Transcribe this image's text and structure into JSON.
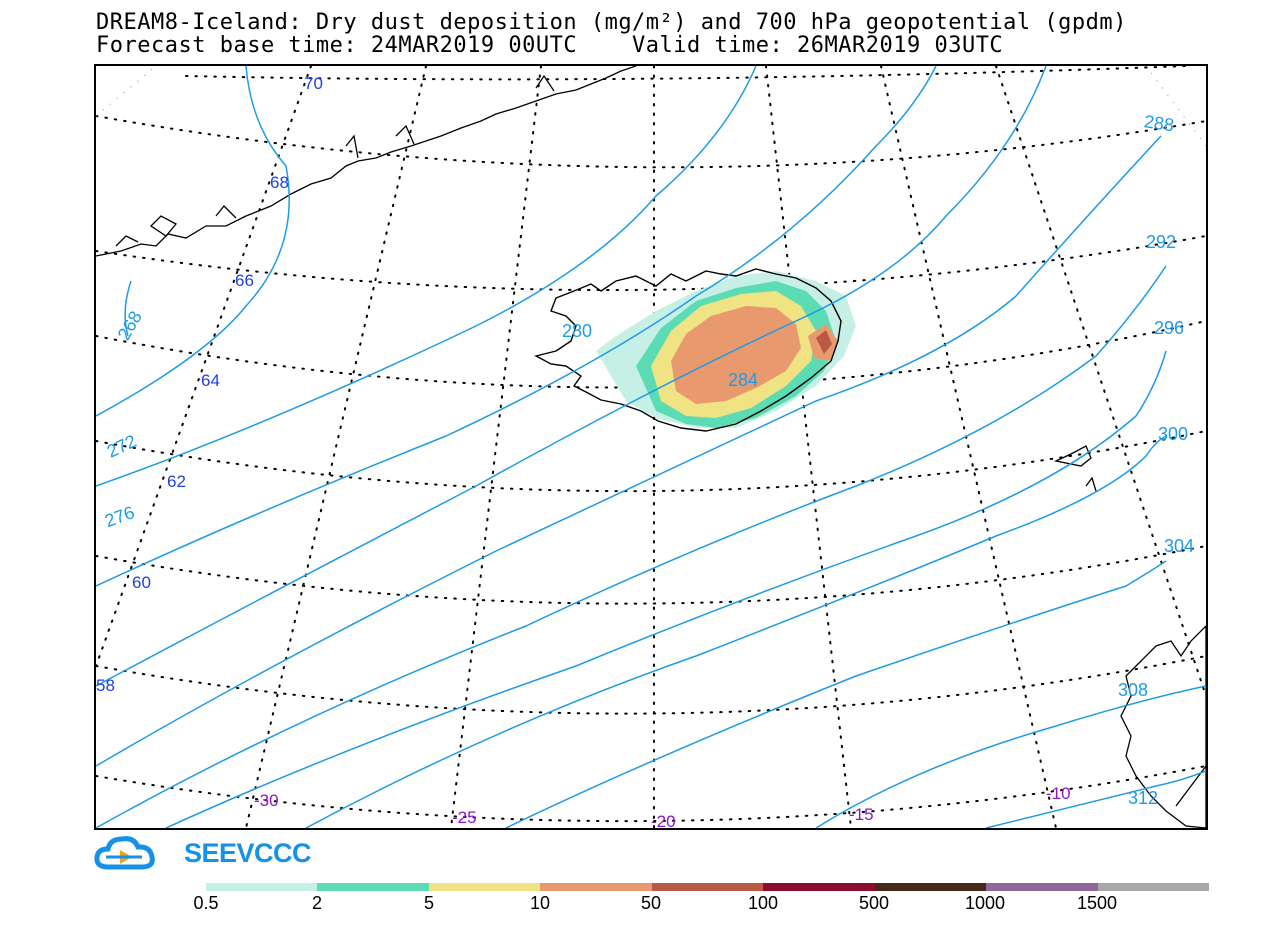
{
  "title": {
    "line1": "DREAM8-Iceland: Dry dust deposition (mg/m²) and 700 hPa geopotential (gpdm)",
    "line2": "Forecast base time: 24MAR2019 00UTC    Valid time: 26MAR2019 03UTC"
  },
  "map": {
    "geopotential_labels": [
      "268",
      "272",
      "276",
      "280",
      "284",
      "288",
      "292",
      "296",
      "300",
      "304",
      "308",
      "312"
    ],
    "latitude_labels": [
      "70",
      "68",
      "66",
      "64",
      "62",
      "60",
      "58"
    ],
    "longitude_labels": [
      "-30",
      "-25",
      "-20",
      "-15",
      "-10"
    ],
    "contour_color": "#1e9be6",
    "latitude_label_color": "#1e3fe0",
    "longitude_label_color": "#8a18c9"
  },
  "logo": {
    "text": "SEEVCCC",
    "color": "#1592e8"
  },
  "colorbar": {
    "labels": [
      "0.5",
      "2",
      "5",
      "10",
      "50",
      "100",
      "500",
      "1000",
      "1500"
    ],
    "colors": [
      "#c6f0e6",
      "#5cdcb4",
      "#f0e384",
      "#e89a6e",
      "#b85a46",
      "#8a0f2e",
      "#452a1a",
      "#8e6a9c",
      "#a8a8a8"
    ]
  }
}
